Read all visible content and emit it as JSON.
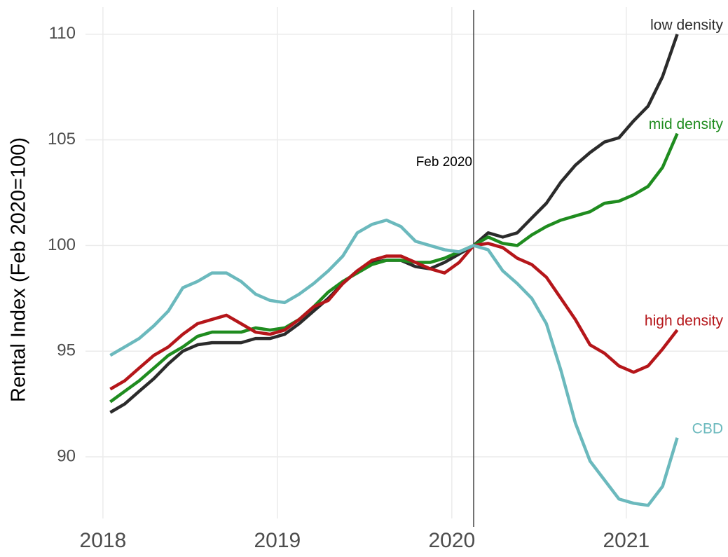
{
  "chart_data": {
    "type": "line",
    "ylabel": "Rental Index (Feb 2020=100)",
    "x": [
      2018.042,
      2018.125,
      2018.208,
      2018.292,
      2018.375,
      2018.458,
      2018.542,
      2018.625,
      2018.708,
      2018.792,
      2018.875,
      2018.958,
      2019.042,
      2019.125,
      2019.208,
      2019.292,
      2019.375,
      2019.458,
      2019.542,
      2019.625,
      2019.708,
      2019.792,
      2019.875,
      2019.958,
      2020.042,
      2020.125,
      2020.208,
      2020.292,
      2020.375,
      2020.458,
      2020.542,
      2020.625,
      2020.708,
      2020.792,
      2020.875,
      2020.958,
      2021.042,
      2021.125,
      2021.208,
      2021.292
    ],
    "series": [
      {
        "name": "low density",
        "color": "#2b2b2b",
        "values": [
          92.1,
          92.5,
          93.1,
          93.7,
          94.4,
          95.0,
          95.3,
          95.4,
          95.4,
          95.4,
          95.6,
          95.6,
          95.8,
          96.3,
          96.9,
          97.5,
          98.2,
          98.8,
          99.2,
          99.3,
          99.3,
          99.0,
          98.9,
          99.2,
          99.6,
          100.0,
          100.6,
          100.4,
          100.6,
          101.3,
          102.0,
          103.0,
          103.8,
          104.4,
          104.9,
          105.1,
          105.9,
          106.6,
          108.0,
          110.0
        ]
      },
      {
        "name": "mid density",
        "color": "#1f8c1f",
        "values": [
          92.6,
          93.1,
          93.6,
          94.2,
          94.8,
          95.2,
          95.7,
          95.9,
          95.9,
          95.9,
          96.1,
          96.0,
          96.1,
          96.5,
          97.1,
          97.8,
          98.3,
          98.7,
          99.1,
          99.3,
          99.3,
          99.2,
          99.2,
          99.4,
          99.7,
          100.0,
          100.4,
          100.1,
          100.0,
          100.5,
          100.9,
          101.2,
          101.4,
          101.6,
          102.0,
          102.1,
          102.4,
          102.8,
          103.7,
          105.3
        ]
      },
      {
        "name": "high density",
        "color": "#b5161a",
        "values": [
          93.2,
          93.6,
          94.2,
          94.8,
          95.2,
          95.8,
          96.3,
          96.5,
          96.7,
          96.3,
          95.9,
          95.8,
          96.0,
          96.5,
          97.1,
          97.4,
          98.2,
          98.8,
          99.3,
          99.5,
          99.5,
          99.2,
          98.9,
          98.7,
          99.2,
          100.0,
          100.1,
          99.9,
          99.4,
          99.1,
          98.5,
          97.5,
          96.5,
          95.3,
          94.9,
          94.3,
          94.0,
          94.3,
          95.1,
          96.0
        ]
      },
      {
        "name": "CBD",
        "color": "#6bb9bd",
        "values": [
          94.8,
          95.2,
          95.6,
          96.2,
          96.9,
          98.0,
          98.3,
          98.7,
          98.7,
          98.3,
          97.7,
          97.4,
          97.3,
          97.7,
          98.2,
          98.8,
          99.5,
          100.6,
          101.0,
          101.2,
          100.9,
          100.2,
          100.0,
          99.8,
          99.7,
          100.0,
          99.8,
          98.8,
          98.2,
          97.5,
          96.3,
          94.1,
          91.6,
          89.8,
          88.9,
          88.0,
          87.8,
          87.7,
          88.6,
          90.9
        ]
      }
    ],
    "vline": {
      "x": 2020.125,
      "label": "Feb 2020"
    },
    "xlim": [
      2017.9,
      2021.583
    ],
    "xticks": [
      2018,
      2019,
      2020,
      2021
    ],
    "ylim": [
      87.08,
      111.29
    ],
    "yticks": [
      90,
      95,
      100,
      105,
      110
    ],
    "grid": true
  }
}
